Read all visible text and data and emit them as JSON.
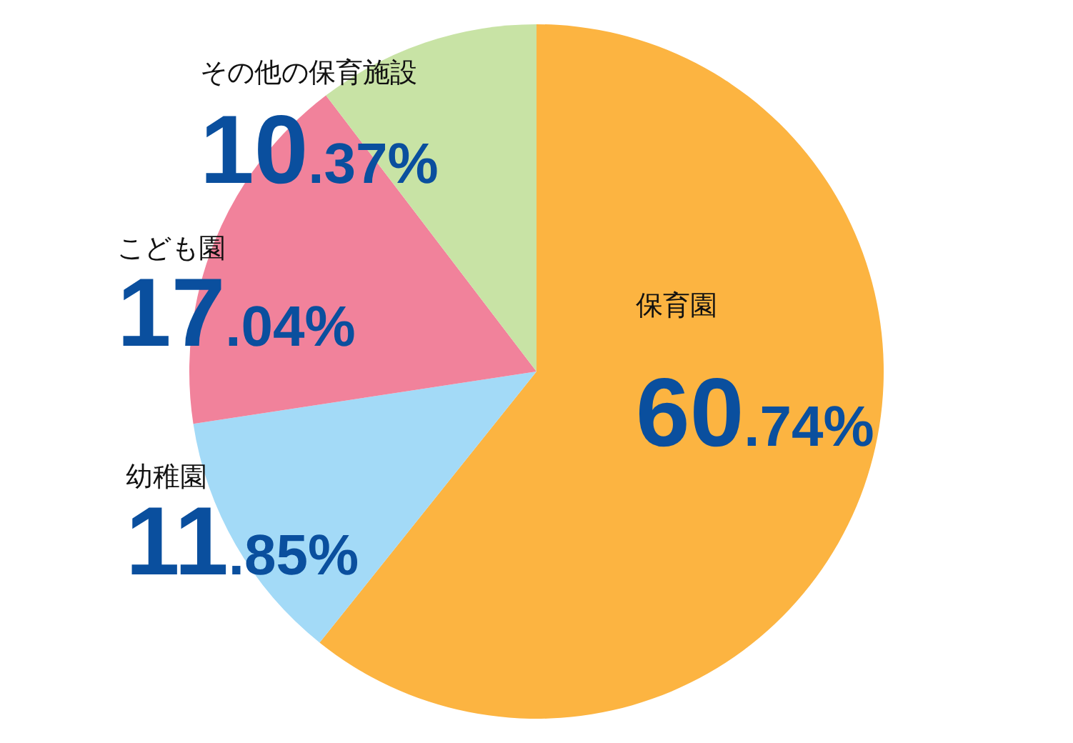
{
  "chart_data": {
    "type": "pie",
    "categories": [
      "保育園",
      "幼稚園",
      "こども園",
      "その他の保育施設"
    ],
    "values": [
      60.74,
      11.85,
      17.04,
      10.37
    ],
    "colors": [
      "#fcb441",
      "#a3daf7",
      "#f1829b",
      "#c8e3a5"
    ],
    "value_labels": [
      "60.74%",
      "11.85%",
      "17.04%",
      "10.37%"
    ],
    "legend": false
  }
}
